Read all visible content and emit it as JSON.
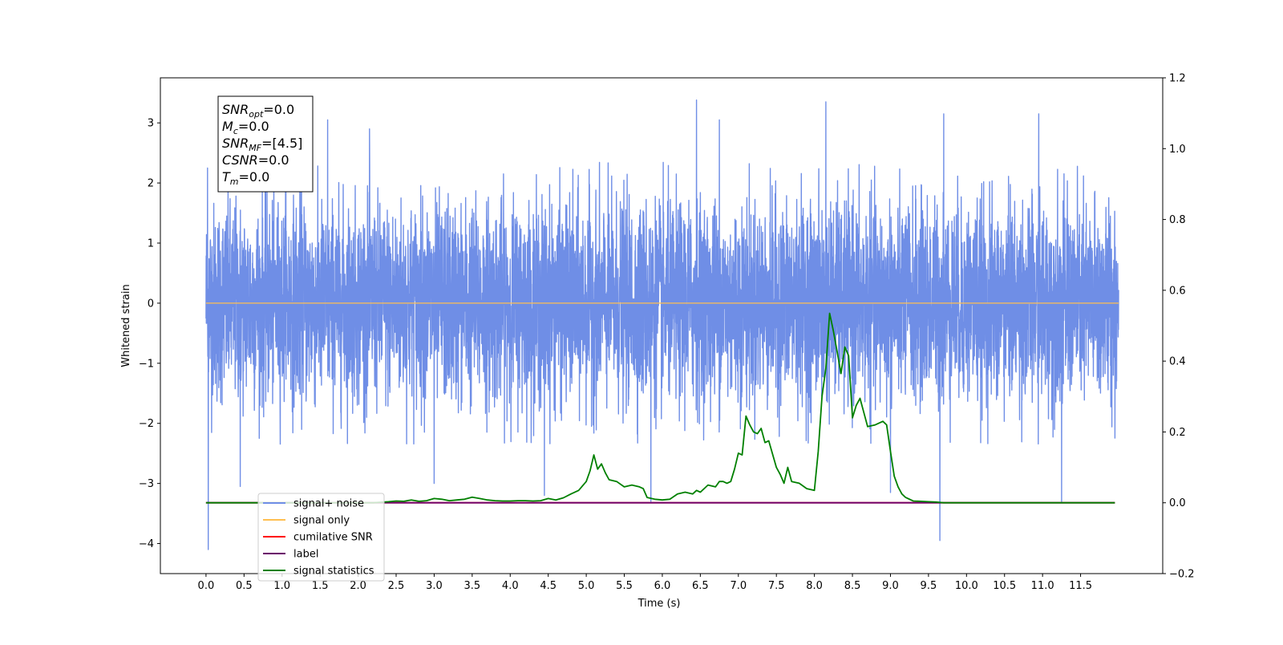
{
  "chart_data": {
    "type": "line",
    "title": "",
    "xlabel": "Time (s)",
    "ylabel": "Whitened strain",
    "xlim": [
      -0.6,
      12.58
    ],
    "ylim": [
      -4.5,
      3.75
    ],
    "y2lim": [
      -0.2,
      1.2
    ],
    "xticks": [
      0.0,
      0.5,
      1.0,
      1.5,
      2.0,
      2.5,
      3.0,
      3.5,
      4.0,
      4.5,
      5.0,
      5.5,
      6.0,
      6.5,
      7.0,
      7.5,
      8.0,
      8.5,
      9.0,
      9.5,
      10.0,
      10.5,
      11.0,
      11.5
    ],
    "xtick_labels": [
      "0.0",
      "0.5",
      "1.0",
      "1.5",
      "2.0",
      "2.5",
      "3.0",
      "3.5",
      "4.0",
      "4.5",
      "5.0",
      "5.5",
      "6.0",
      "6.5",
      "7.0",
      "7.5",
      "8.0",
      "8.5",
      "9.0",
      "9.5",
      "10.0",
      "10.5",
      "11.0",
      "11.5"
    ],
    "yticks": [
      3,
      2,
      1,
      0,
      -1,
      -2,
      -3,
      -4
    ],
    "ytick_labels": [
      "3",
      "2",
      "1",
      "0",
      "−1",
      "−2",
      "−3",
      "−4"
    ],
    "y2ticks": [
      1.2,
      1.0,
      0.8,
      0.6,
      0.4,
      0.2,
      0.0,
      -0.2
    ],
    "y2tick_labels": [
      "1.2",
      "1.0",
      "0.8",
      "0.6",
      "0.4",
      "0.2",
      "0.0",
      "−0.2"
    ],
    "grid": false,
    "legend_position": "lower-left",
    "noise_spikes": [
      {
        "x": 0.03,
        "y": -4.1
      },
      {
        "x": 0.02,
        "y": 2.25
      },
      {
        "x": 1.05,
        "y": 3.05
      },
      {
        "x": 1.25,
        "y": 2.95
      },
      {
        "x": 1.6,
        "y": 3.05
      },
      {
        "x": 6.45,
        "y": 3.38
      },
      {
        "x": 8.15,
        "y": 3.35
      },
      {
        "x": 9.65,
        "y": -3.95
      },
      {
        "x": 9.7,
        "y": 3.15
      },
      {
        "x": 10.95,
        "y": 3.15
      },
      {
        "x": 11.25,
        "y": -3.3
      },
      {
        "x": 0.45,
        "y": -3.05
      },
      {
        "x": 3.0,
        "y": -3.0
      },
      {
        "x": 5.85,
        "y": -3.3
      },
      {
        "x": 9.0,
        "y": -3.15
      },
      {
        "x": 4.45,
        "y": -3.2
      },
      {
        "x": 6.75,
        "y": 3.05
      },
      {
        "x": 2.15,
        "y": 2.9
      }
    ],
    "series": [
      {
        "name": "signal+ noise",
        "color": "#6f8ee6",
        "kind": "noise",
        "x_range": [
          0.0,
          12.0
        ],
        "amplitude": 1.0
      },
      {
        "name": "signal only",
        "color": "#ffbf50",
        "kind": "line",
        "axis": "left",
        "x": [
          0.0,
          12.0
        ],
        "y": [
          0.0,
          0.0
        ]
      },
      {
        "name": "cumilative SNR",
        "color": "#ff0000",
        "kind": "line",
        "axis": "right",
        "x": [
          0.0,
          11.95
        ],
        "y": [
          0.0,
          0.0
        ]
      },
      {
        "name": "label",
        "color": "#6b006b",
        "kind": "line",
        "axis": "right",
        "x": [
          0.0,
          11.95
        ],
        "y": [
          0.0,
          0.0
        ]
      },
      {
        "name": "signal statistics",
        "color": "#008000",
        "kind": "line",
        "axis": "right",
        "x": [
          0.0,
          2.2,
          2.4,
          2.5,
          2.6,
          2.7,
          2.8,
          2.9,
          3.0,
          3.1,
          3.2,
          3.3,
          3.4,
          3.5,
          3.6,
          3.7,
          3.8,
          3.9,
          4.0,
          4.1,
          4.2,
          4.3,
          4.4,
          4.5,
          4.6,
          4.7,
          4.8,
          4.9,
          5.0,
          5.05,
          5.1,
          5.15,
          5.2,
          5.25,
          5.3,
          5.4,
          5.5,
          5.6,
          5.7,
          5.75,
          5.8,
          5.9,
          6.0,
          6.1,
          6.2,
          6.3,
          6.4,
          6.45,
          6.5,
          6.6,
          6.7,
          6.75,
          6.8,
          6.85,
          6.9,
          6.95,
          7.0,
          7.05,
          7.1,
          7.15,
          7.2,
          7.25,
          7.3,
          7.35,
          7.4,
          7.5,
          7.55,
          7.6,
          7.65,
          7.7,
          7.8,
          7.9,
          8.0,
          8.05,
          8.1,
          8.15,
          8.2,
          8.25,
          8.3,
          8.35,
          8.4,
          8.45,
          8.5,
          8.55,
          8.6,
          8.7,
          8.8,
          8.9,
          8.95,
          9.0,
          9.05,
          9.1,
          9.15,
          9.2,
          9.3,
          9.4,
          9.5,
          9.6,
          9.7,
          9.8,
          10.0,
          11.95
        ],
        "y": [
          0.0,
          0.0,
          0.003,
          0.005,
          0.004,
          0.008,
          0.004,
          0.006,
          0.012,
          0.01,
          0.006,
          0.008,
          0.01,
          0.016,
          0.012,
          0.008,
          0.006,
          0.005,
          0.005,
          0.006,
          0.006,
          0.005,
          0.006,
          0.012,
          0.008,
          0.014,
          0.025,
          0.035,
          0.06,
          0.09,
          0.135,
          0.095,
          0.11,
          0.085,
          0.065,
          0.06,
          0.045,
          0.05,
          0.045,
          0.04,
          0.015,
          0.01,
          0.008,
          0.01,
          0.025,
          0.03,
          0.025,
          0.035,
          0.03,
          0.05,
          0.045,
          0.06,
          0.06,
          0.055,
          0.06,
          0.095,
          0.14,
          0.135,
          0.245,
          0.22,
          0.2,
          0.195,
          0.21,
          0.17,
          0.175,
          0.1,
          0.08,
          0.055,
          0.1,
          0.06,
          0.055,
          0.04,
          0.035,
          0.145,
          0.3,
          0.38,
          0.535,
          0.485,
          0.425,
          0.365,
          0.44,
          0.415,
          0.24,
          0.275,
          0.295,
          0.215,
          0.22,
          0.23,
          0.22,
          0.145,
          0.075,
          0.045,
          0.025,
          0.015,
          0.005,
          0.004,
          0.003,
          0.002,
          0.0,
          0.0,
          0.0,
          0.0
        ]
      }
    ]
  },
  "annotation": {
    "lines": [
      {
        "base": "SNR",
        "sub": "opt",
        "value": "=0.0"
      },
      {
        "base": "M",
        "sub": "c",
        "value": "=0.0"
      },
      {
        "base": "SNR",
        "sub": "MF",
        "value": "=[4.5]"
      },
      {
        "base": "CSNR",
        "sub": "",
        "value": "=0.0"
      },
      {
        "base": "T",
        "sub": "m",
        "value": "=0.0"
      }
    ]
  },
  "legend": {
    "entries": [
      {
        "label": "signal+ noise",
        "color": "#6f8ee6"
      },
      {
        "label": "signal only",
        "color": "#ffbf50"
      },
      {
        "label": "cumilative SNR",
        "color": "#ff0000"
      },
      {
        "label": "label",
        "color": "#6b006b"
      },
      {
        "label": "signal statistics",
        "color": "#008000"
      }
    ]
  }
}
